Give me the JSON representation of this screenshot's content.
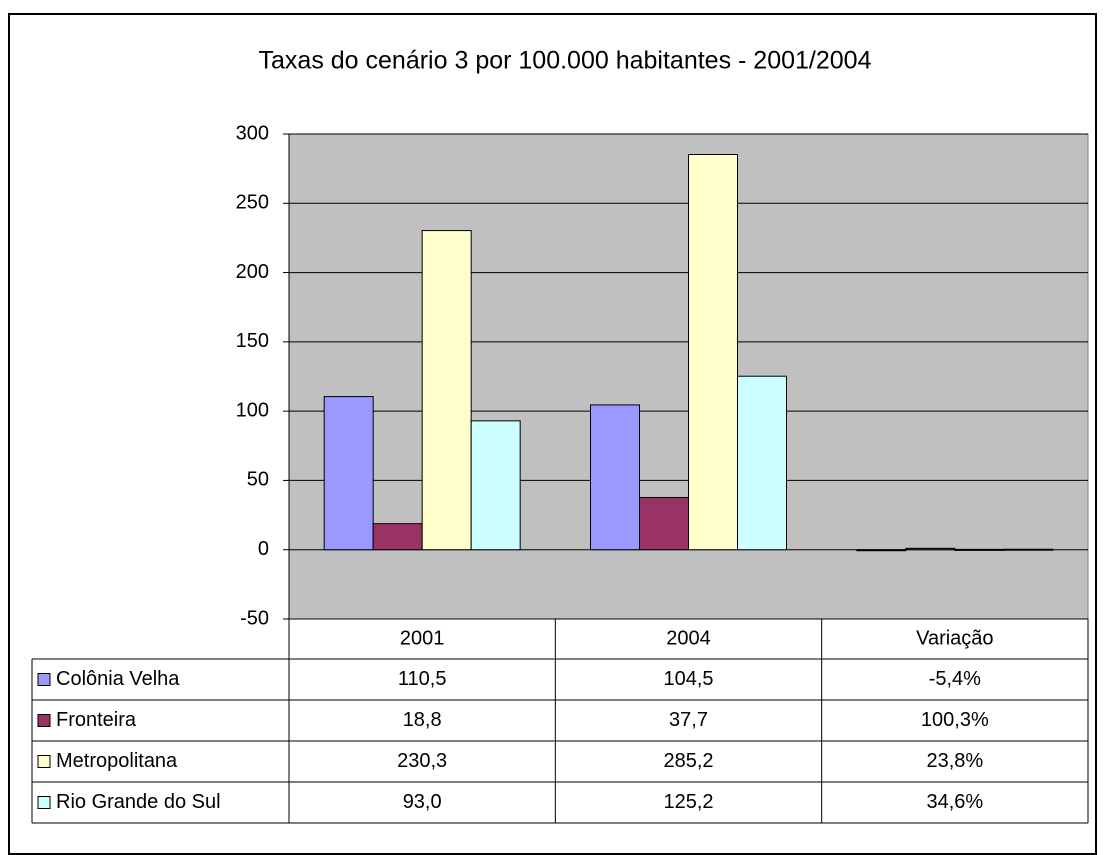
{
  "chart_data": {
    "type": "bar",
    "title": "Taxas do cenário 3 por 100.000 habitantes - 2001/2004",
    "categories": [
      "2001",
      "2004",
      "Variação"
    ],
    "series": [
      {
        "name": "Colônia Velha",
        "color": "#9999ff",
        "values": [
          110.5,
          104.5,
          -0.054
        ],
        "value_labels": [
          "110,5",
          "104,5",
          "-5,4%"
        ]
      },
      {
        "name": "Fronteira",
        "color": "#993366",
        "values": [
          18.8,
          37.7,
          1.003
        ],
        "value_labels": [
          "18,8",
          "37,7",
          "100,3%"
        ]
      },
      {
        "name": "Metropolitana",
        "color": "#ffffcc",
        "values": [
          230.3,
          285.2,
          0.238
        ],
        "value_labels": [
          "230,3",
          "285,2",
          "23,8%"
        ]
      },
      {
        "name": "Rio Grande do Sul",
        "color": "#ccffff",
        "values": [
          93.0,
          125.2,
          0.346
        ],
        "value_labels": [
          "93,0",
          "125,2",
          "34,6%"
        ]
      }
    ],
    "ylim": [
      -50,
      300
    ],
    "yticks": [
      -50,
      0,
      50,
      100,
      150,
      200,
      250,
      300
    ],
    "grid": true
  }
}
